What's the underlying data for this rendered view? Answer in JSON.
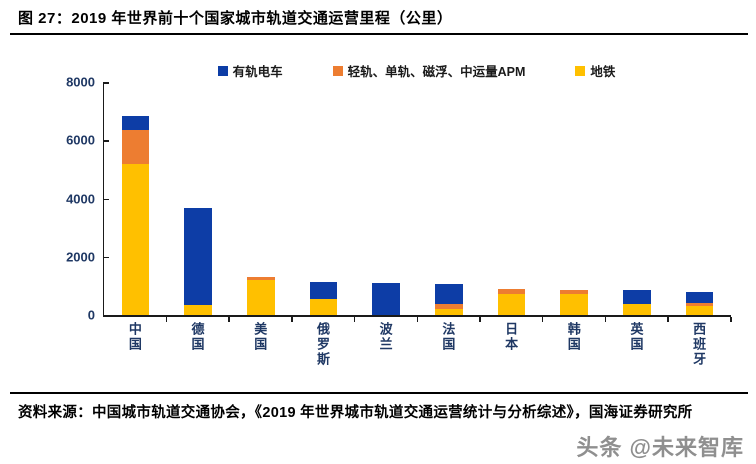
{
  "page": {
    "title": "图 27：2019 年世界前十个国家城市轨道交通运营里程（公里）",
    "footer_source": "资料来源：中国城市轨道交通协会，《2019 年世界城市轨道交通运营统计与分析综述》，国海证券研究所",
    "watermark": "头条 @未来智库"
  },
  "colors": {
    "tram_blue": "#0D3DA6",
    "light_rail_orange": "#ED7D31",
    "metro_yellow": "#FFC000",
    "axis_label_navy": "#1F3864",
    "axis_line": "#1a1a1a"
  },
  "chart_data": {
    "type": "bar",
    "stacked": true,
    "title": "2019 年世界前十个国家城市轨道交通运营里程（公里）",
    "xlabel": "",
    "ylabel": "",
    "ylim": [
      0,
      8000
    ],
    "yticks": [
      0,
      2000,
      4000,
      6000,
      8000
    ],
    "grid": false,
    "legend_position": "top",
    "categories": [
      "中国",
      "德国",
      "美国",
      "俄罗斯",
      "波兰",
      "法国",
      "日本",
      "韩国",
      "英国",
      "西班牙"
    ],
    "series": [
      {
        "name": "有轨电车",
        "color": "#0D3DA6",
        "values": [
          490,
          3320,
          0,
          595,
          1090,
          690,
          0,
          0,
          480,
          390
        ]
      },
      {
        "name": "轻轨、单轨、磁浮、中运量APM",
        "color": "#ED7D31",
        "values": [
          1150,
          0,
          115,
          0,
          0,
          170,
          180,
          150,
          0,
          80
        ]
      },
      {
        "name": "地铁",
        "color": "#FFC000",
        "values": [
          5190,
          345,
          1200,
          550,
          0,
          215,
          710,
          720,
          380,
          320
        ]
      }
    ],
    "stack_order_bottom_to_top": [
      "地铁",
      "轻轨、单轨、磁浮、中运量APM",
      "有轨电车"
    ],
    "totals": [
      6830,
      3665,
      1315,
      1145,
      1090,
      1075,
      890,
      870,
      860,
      790
    ]
  }
}
